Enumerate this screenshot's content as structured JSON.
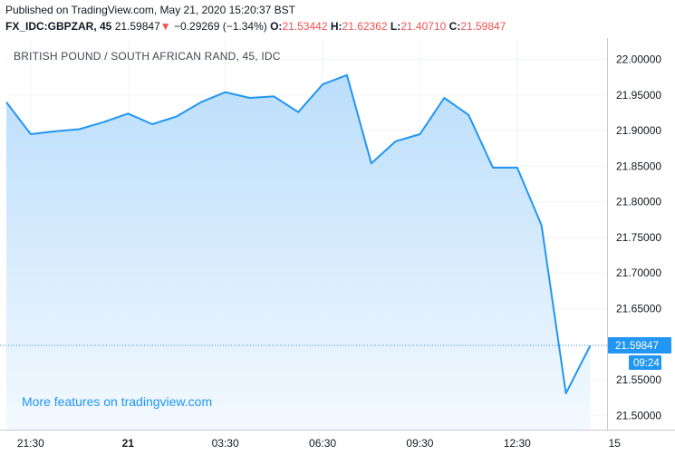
{
  "header": {
    "published": "Published on TradingView.com, May 21, 2020 15:20:37 BST",
    "symbol": "FX_IDC:GBPZAR, 45",
    "last": "21.59847",
    "down_arrow": "▼",
    "change": "−0.29269 (−1.34%)",
    "o_label": "O:",
    "o_value": "21.53442",
    "h_label": "H:",
    "h_value": "21.62362",
    "l_label": "L:",
    "l_value": "21.40710",
    "c_label": "C:",
    "c_value": "21.59847"
  },
  "pane_title": "BRITISH POUND / SOUTH AFRICAN RAND, 45, IDC",
  "watermark": "More features on tradingview.com",
  "price_tag": {
    "price": "21.59847",
    "countdown": "09:24"
  },
  "colors": {
    "line": "#2196f3",
    "fill_top": "#bbdefb",
    "fill_bottom": "#f3f9ff",
    "grid": "#f0f3fa",
    "axis": "#c9cbd1",
    "price_line": "#2196f3",
    "down": "#ef5350"
  },
  "chart_data": {
    "type": "area",
    "ylim": [
      21.48,
      22.03
    ],
    "y_ticks": [
      {
        "value": 22.0,
        "label": "22.00000"
      },
      {
        "value": 21.95,
        "label": "21.95000"
      },
      {
        "value": 21.9,
        "label": "21.90000"
      },
      {
        "value": 21.85,
        "label": "21.85000"
      },
      {
        "value": 21.8,
        "label": "21.80000"
      },
      {
        "value": 21.75,
        "label": "21.75000"
      },
      {
        "value": 21.7,
        "label": "21.70000"
      },
      {
        "value": 21.65,
        "label": "21.65000"
      },
      {
        "value": 21.55,
        "label": "21.55000"
      },
      {
        "value": 21.5,
        "label": "21.50000"
      }
    ],
    "x_ticks": [
      {
        "index": 1,
        "label": "21:30"
      },
      {
        "index": 5,
        "label": "21"
      },
      {
        "index": 9,
        "label": "03:30"
      },
      {
        "index": 13,
        "label": "06:30"
      },
      {
        "index": 17,
        "label": "09:30"
      },
      {
        "index": 21,
        "label": "12:30"
      },
      {
        "index": 25,
        "label": "15"
      }
    ],
    "x_max_index": 25,
    "values": [
      21.94,
      21.895,
      21.899,
      21.902,
      21.912,
      21.924,
      21.909,
      21.92,
      21.94,
      21.954,
      21.946,
      21.948,
      21.926,
      21.965,
      21.978,
      21.854,
      21.885,
      21.895,
      21.946,
      21.922,
      21.848,
      21.848,
      21.767,
      21.531,
      21.598
    ],
    "last_price": 21.59847
  }
}
